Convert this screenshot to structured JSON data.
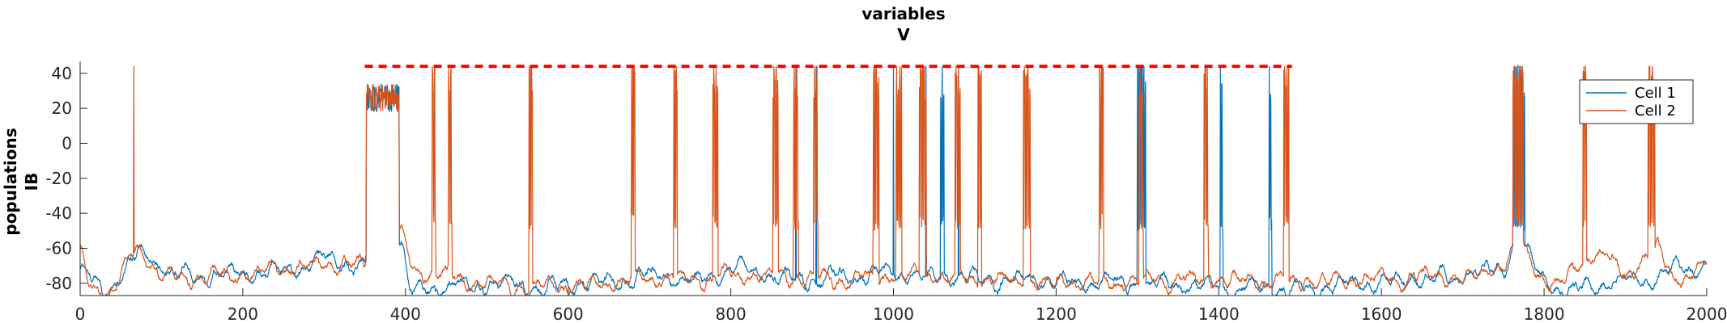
{
  "chart_data": {
    "type": "line",
    "title": [
      "variables",
      "V"
    ],
    "ylabel": [
      "populations",
      "IB"
    ],
    "xlabel": "",
    "xlim": [
      0,
      2000
    ],
    "ylim": [
      -87,
      45
    ],
    "xticks": [
      0,
      200,
      400,
      600,
      800,
      1000,
      1200,
      1400,
      1600,
      1800,
      2000
    ],
    "yticks": [
      -80,
      -60,
      -40,
      -20,
      0,
      20,
      40
    ],
    "grid": false,
    "legend": {
      "placement": "top-right",
      "entries": [
        "Cell 1",
        "Cell 2"
      ]
    },
    "threshold_line": {
      "y": 44,
      "x_start": 350,
      "x_end": 1490,
      "color": "#ff0000",
      "style": "dashed"
    },
    "series": [
      {
        "name": "Cell 1",
        "color": "#0072BD",
        "baseline": [
          [
            0,
            -72
          ],
          [
            30,
            -86
          ],
          [
            70,
            -62
          ],
          [
            120,
            -76
          ],
          [
            200,
            -75
          ],
          [
            260,
            -72
          ],
          [
            300,
            -67
          ],
          [
            350,
            -70
          ],
          [
            355,
            -53
          ],
          [
            395,
            -55
          ],
          [
            405,
            -84
          ],
          [
            480,
            -80
          ],
          [
            600,
            -82
          ],
          [
            700,
            -76
          ],
          [
            760,
            -78
          ],
          [
            800,
            -72
          ],
          [
            900,
            -78
          ],
          [
            1000,
            -74
          ],
          [
            1100,
            -78
          ],
          [
            1200,
            -79
          ],
          [
            1300,
            -80
          ],
          [
            1400,
            -82
          ],
          [
            1500,
            -84
          ],
          [
            1600,
            -79
          ],
          [
            1700,
            -75
          ],
          [
            1750,
            -72
          ],
          [
            1770,
            -55
          ],
          [
            1790,
            -74
          ],
          [
            1820,
            -84
          ],
          [
            1900,
            -78
          ],
          [
            2000,
            -70
          ]
        ],
        "bursts": [
          [
            352,
            392
          ],
          [
            1300,
            1310
          ],
          [
            1402,
            1405
          ],
          [
            1462,
            1465
          ],
          [
            1058,
            1062
          ],
          [
            1762,
            1776
          ]
        ],
        "spike_events": [
          880,
          905,
          1000,
          1040,
          1080,
          1305,
          1308,
          1402,
          1462,
          1060,
          1764,
          1770,
          1773
        ]
      },
      {
        "name": "Cell 2",
        "color": "#D95319",
        "baseline": [
          [
            0,
            -62
          ],
          [
            10,
            -80
          ],
          [
            40,
            -86
          ],
          [
            70,
            -58
          ],
          [
            100,
            -77
          ],
          [
            200,
            -76
          ],
          [
            300,
            -68
          ],
          [
            350,
            -70
          ],
          [
            355,
            -53
          ],
          [
            395,
            -53
          ],
          [
            410,
            -73
          ],
          [
            500,
            -80
          ],
          [
            600,
            -82
          ],
          [
            700,
            -78
          ],
          [
            800,
            -75
          ],
          [
            900,
            -78
          ],
          [
            1000,
            -76
          ],
          [
            1100,
            -77
          ],
          [
            1200,
            -80
          ],
          [
            1300,
            -79
          ],
          [
            1400,
            -78
          ],
          [
            1500,
            -80
          ],
          [
            1600,
            -78
          ],
          [
            1700,
            -77
          ],
          [
            1750,
            -70
          ],
          [
            1770,
            -55
          ],
          [
            1790,
            -72
          ],
          [
            1820,
            -82
          ],
          [
            1860,
            -60
          ],
          [
            1900,
            -75
          ],
          [
            1940,
            -60
          ],
          [
            1960,
            -78
          ],
          [
            2000,
            -72
          ]
        ],
        "bursts": [
          [
            352,
            392
          ],
          [
            433,
            437
          ],
          [
            453,
            457
          ],
          [
            552,
            556
          ],
          [
            678,
            682
          ],
          [
            730,
            734
          ],
          [
            778,
            784
          ],
          [
            852,
            858
          ],
          [
            877,
            883
          ],
          [
            902,
            907
          ],
          [
            975,
            982
          ],
          [
            1003,
            1010
          ],
          [
            1032,
            1040
          ],
          [
            1076,
            1082
          ],
          [
            1104,
            1108
          ],
          [
            1160,
            1168
          ],
          [
            1253,
            1258
          ],
          [
            1302,
            1307
          ],
          [
            1382,
            1387
          ],
          [
            1480,
            1486
          ],
          [
            1762,
            1774
          ],
          [
            1848,
            1852
          ],
          [
            1928,
            1936
          ]
        ],
        "spike_events": [
          66,
          433,
          436,
          453,
          456,
          552,
          555,
          678,
          681,
          730,
          733,
          779,
          782,
          853,
          856,
          878,
          881,
          903,
          906,
          976,
          979,
          1004,
          1008,
          1033,
          1037,
          1077,
          1080,
          1105,
          1161,
          1165,
          1254,
          1257,
          1303,
          1383,
          1386,
          1481,
          1484,
          1763,
          1767,
          1771,
          1849,
          1851,
          1929,
          1933
        ]
      }
    ]
  }
}
